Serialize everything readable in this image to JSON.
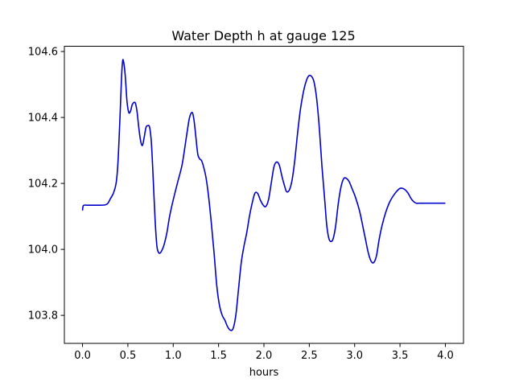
{
  "chart_data": {
    "type": "line",
    "title": "Water Depth h at gauge 125",
    "xlabel": "hours",
    "ylabel": "",
    "xlim": [
      -0.2,
      4.2
    ],
    "ylim": [
      103.715,
      104.616
    ],
    "xticks": [
      0.0,
      0.5,
      1.0,
      1.5,
      2.0,
      2.5,
      3.0,
      3.5,
      4.0
    ],
    "xtick_labels": [
      "0.0",
      "0.5",
      "1.0",
      "1.5",
      "2.0",
      "2.5",
      "3.0",
      "3.5",
      "4.0"
    ],
    "yticks": [
      103.8,
      104.0,
      104.2,
      104.4,
      104.6
    ],
    "ytick_labels": [
      "103.8",
      "104.0",
      "104.2",
      "104.4",
      "104.6"
    ],
    "grid": false,
    "legend": "none",
    "series": [
      {
        "color": "#0000cc",
        "x": [
          0.0,
          0.01,
          0.05,
          0.1,
          0.15,
          0.2,
          0.25,
          0.28,
          0.31,
          0.34,
          0.37,
          0.39,
          0.41,
          0.43,
          0.44,
          0.45,
          0.47,
          0.49,
          0.51,
          0.53,
          0.55,
          0.58,
          0.6,
          0.62,
          0.64,
          0.66,
          0.68,
          0.7,
          0.72,
          0.74,
          0.76,
          0.78,
          0.8,
          0.82,
          0.84,
          0.86,
          0.88,
          0.9,
          0.93,
          0.96,
          1.0,
          1.05,
          1.1,
          1.15,
          1.18,
          1.21,
          1.23,
          1.25,
          1.27,
          1.29,
          1.31,
          1.33,
          1.36,
          1.39,
          1.42,
          1.45,
          1.48,
          1.51,
          1.54,
          1.57,
          1.6,
          1.63,
          1.66,
          1.69,
          1.72,
          1.75,
          1.78,
          1.81,
          1.84,
          1.87,
          1.9,
          1.93,
          1.96,
          1.99,
          2.02,
          2.05,
          2.08,
          2.11,
          2.14,
          2.17,
          2.2,
          2.23,
          2.25,
          2.28,
          2.31,
          2.34,
          2.37,
          2.4,
          2.43,
          2.46,
          2.49,
          2.52,
          2.55,
          2.58,
          2.61,
          2.64,
          2.67,
          2.69,
          2.71,
          2.73,
          2.76,
          2.79,
          2.82,
          2.85,
          2.88,
          2.91,
          2.94,
          2.97,
          3.0,
          3.03,
          3.06,
          3.09,
          3.12,
          3.15,
          3.18,
          3.21,
          3.24,
          3.27,
          3.3,
          3.34,
          3.38,
          3.42,
          3.46,
          3.5,
          3.53,
          3.56,
          3.59,
          3.62,
          3.65,
          3.68,
          3.71,
          3.74,
          3.77,
          3.8,
          3.83,
          3.86,
          3.89,
          3.92,
          3.95,
          3.98,
          4.0
        ],
        "y": [
          104.118,
          104.133,
          104.134,
          104.134,
          104.134,
          104.134,
          104.135,
          104.14,
          104.155,
          104.17,
          104.2,
          104.26,
          104.38,
          104.52,
          104.565,
          104.573,
          104.53,
          104.45,
          104.415,
          104.42,
          104.44,
          104.445,
          104.42,
          104.37,
          104.33,
          104.315,
          104.34,
          104.37,
          104.375,
          104.37,
          104.32,
          104.21,
          104.09,
          104.01,
          103.99,
          103.99,
          104.0,
          104.015,
          104.05,
          104.1,
          104.15,
          104.205,
          104.26,
          104.35,
          104.4,
          104.415,
          104.39,
          104.34,
          104.29,
          104.275,
          104.27,
          104.255,
          104.22,
          104.16,
          104.08,
          103.99,
          103.89,
          103.83,
          103.8,
          103.785,
          103.765,
          103.755,
          103.76,
          103.8,
          103.88,
          103.96,
          104.01,
          104.05,
          104.1,
          104.14,
          104.17,
          104.17,
          104.15,
          104.135,
          104.13,
          104.15,
          104.2,
          104.25,
          104.265,
          104.255,
          104.22,
          104.19,
          104.175,
          104.18,
          104.21,
          104.27,
          104.35,
          104.42,
          104.47,
          104.505,
          104.525,
          104.526,
          104.51,
          104.46,
          104.37,
          104.25,
          104.15,
          104.08,
          104.04,
          104.025,
          104.03,
          104.07,
          104.14,
          104.19,
          104.215,
          104.215,
          104.205,
          104.185,
          104.165,
          104.14,
          104.11,
          104.07,
          104.03,
          103.99,
          103.965,
          103.96,
          103.98,
          104.03,
          104.07,
          104.11,
          104.14,
          104.16,
          104.175,
          104.185,
          104.185,
          104.18,
          104.17,
          104.155,
          104.145,
          104.14,
          104.14,
          104.14,
          104.14,
          104.14,
          104.14,
          104.14,
          104.14,
          104.14,
          104.14,
          104.14,
          104.14
        ]
      }
    ]
  }
}
